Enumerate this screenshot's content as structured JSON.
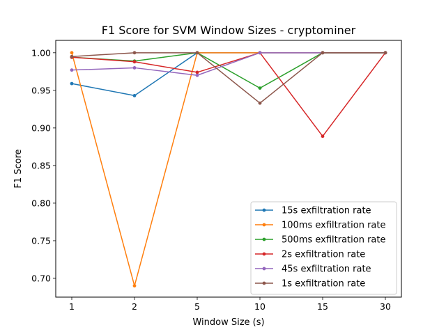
{
  "chart_data": {
    "type": "line",
    "title": "F1 Score for SVM Window Sizes - cryptominer",
    "xlabel": "Window Size (s)",
    "ylabel": "F1 Score",
    "categories": [
      "1",
      "2",
      "5",
      "10",
      "15",
      "30"
    ],
    "ylim": [
      0.675,
      1.0165
    ],
    "yticks": [
      0.7,
      0.75,
      0.8,
      0.85,
      0.9,
      0.95,
      1.0
    ],
    "ytick_labels": [
      "0.70",
      "0.75",
      "0.80",
      "0.85",
      "0.90",
      "0.95",
      "1.00"
    ],
    "grid": false,
    "legend_position": "lower-right",
    "series": [
      {
        "name": "15s exfiltration rate",
        "color": "#1f77b4",
        "values": [
          0.959,
          0.943,
          1.0,
          1.0,
          1.0,
          1.0
        ]
      },
      {
        "name": "100ms exfiltration rate",
        "color": "#ff7f0e",
        "values": [
          1.0,
          0.69,
          1.0,
          1.0,
          1.0,
          1.0
        ]
      },
      {
        "name": "500ms exfiltration rate",
        "color": "#2ca02c",
        "values": [
          0.994,
          0.989,
          1.0,
          0.953,
          1.0,
          1.0
        ]
      },
      {
        "name": "2s exfiltration rate",
        "color": "#d62728",
        "values": [
          0.994,
          0.988,
          0.974,
          1.0,
          0.889,
          1.0
        ]
      },
      {
        "name": "45s exfiltration rate",
        "color": "#9467bd",
        "values": [
          0.977,
          0.98,
          0.97,
          1.0,
          1.0,
          1.0
        ]
      },
      {
        "name": "1s exfiltration rate",
        "color": "#8c564b",
        "values": [
          0.995,
          1.0,
          1.0,
          0.933,
          1.0,
          1.0
        ]
      }
    ]
  }
}
